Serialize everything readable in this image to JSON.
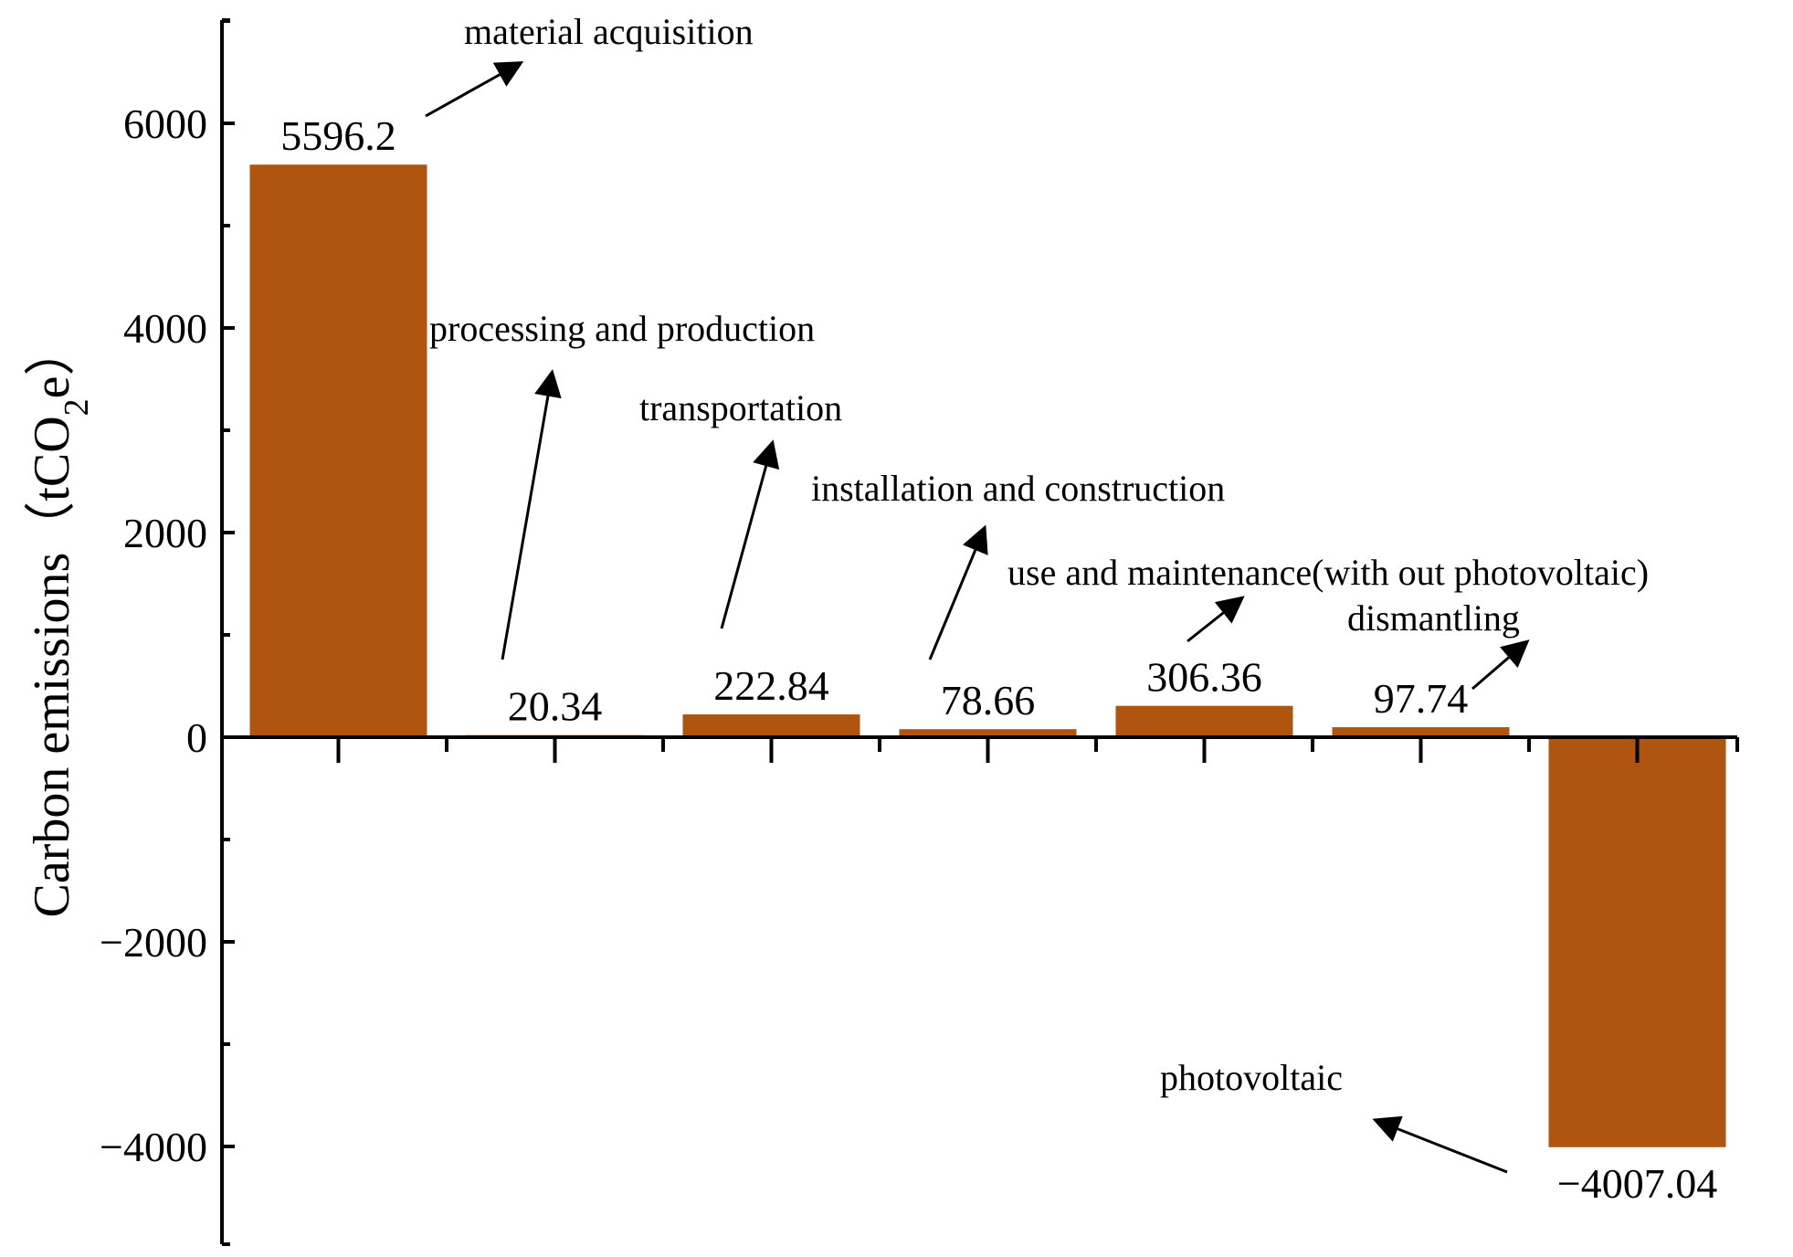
{
  "chart_data": {
    "type": "bar",
    "title": "",
    "xlabel": "",
    "ylabel": "Carbon emissions（tCO2e）",
    "ylabel_parts": {
      "main": "Carbon emissions（tCO",
      "sub": "2",
      "end": "e）"
    },
    "ylim": [
      -4800,
      6900
    ],
    "yticks": [
      -4000,
      -2000,
      0,
      2000,
      4000,
      6000
    ],
    "ytick_labels": [
      "−4000",
      "−2000",
      "0",
      "2000",
      "4000",
      "6000"
    ],
    "categories": [
      "material acquisition",
      "processing and production",
      "transportation",
      "installation and construction",
      "use and maintenance(with out photovoltaic)",
      "dismantling",
      "photovoltaic"
    ],
    "values": [
      5596.2,
      20.34,
      222.84,
      78.66,
      306.36,
      97.74,
      -4007.04
    ],
    "value_labels": [
      "5596.2",
      "20.34",
      "222.84",
      "78.66",
      "306.36",
      "97.74",
      "−4007.04"
    ],
    "bar_color": "#B05510",
    "grid": false,
    "legend": "none"
  }
}
